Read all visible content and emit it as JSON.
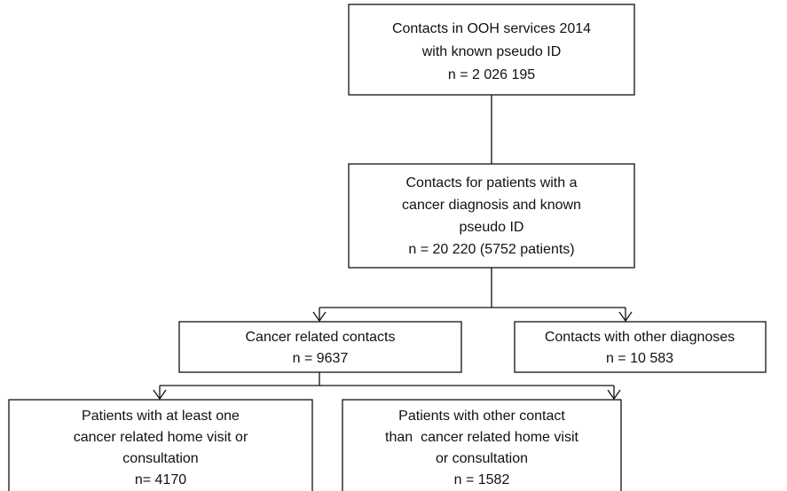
{
  "nodes": [
    {
      "lines": [
        "Contacts in OOH services 2014",
        "with known pseudo ID",
        "n = 2 026 195"
      ]
    },
    {
      "lines": [
        "Contacts for patients with a",
        "cancer diagnosis and known",
        "pseudo ID",
        "n = 20 220 (5752 patients)"
      ]
    },
    {
      "lines": [
        "Cancer related contacts",
        "n = 9637"
      ]
    },
    {
      "lines": [
        "Contacts with other diagnoses",
        "n = 10 583"
      ]
    },
    {
      "lines": [
        "Patients with at least one",
        "cancer related home visit or",
        "consultation",
        "n= 4170"
      ]
    },
    {
      "lines": [
        "Patients with other contact",
        "than  cancer related home visit",
        "or consultation",
        "n = 1582"
      ]
    }
  ]
}
